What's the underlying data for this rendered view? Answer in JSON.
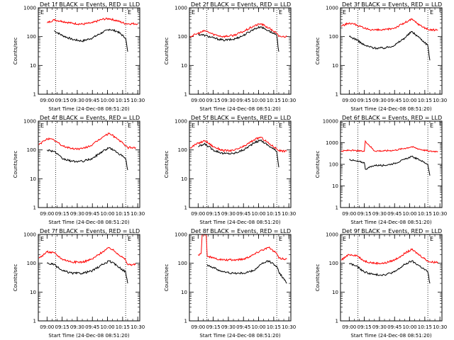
{
  "chart_data": [
    {
      "type": "line",
      "title": "Det 1f BLACK = Events, RED = LLD",
      "xlabel": "Start Time (24-Dec-08 08:51:20)",
      "ylabel": "Counts/sec",
      "xticks": [
        "09:00",
        "09:15",
        "09:30",
        "09:45",
        "10:00",
        "10:15",
        "10:30"
      ],
      "yticks": [
        "1",
        "10",
        "100",
        "1000"
      ],
      "ylim": [
        1,
        1000
      ],
      "yscale": "log",
      "markers": [
        {
          "label": "E",
          "x": "08:51:20"
        },
        {
          "label": "E",
          "x": "10:20:00"
        }
      ],
      "vlines": [
        "09:08:30",
        "10:18:00"
      ],
      "x": [
        "09:00",
        "09:07",
        "09:15",
        "09:25",
        "09:35",
        "09:45",
        "09:55",
        "10:02",
        "10:10",
        "10:18",
        "10:20",
        "10:30"
      ],
      "series": [
        {
          "name": "BLACK = Events",
          "color": "#000000",
          "values": [
            null,
            160,
            110,
            80,
            70,
            90,
            140,
            180,
            150,
            90,
            30,
            null
          ]
        },
        {
          "name": "RED = LLD",
          "color": "#ff0000",
          "values": [
            300,
            380,
            340,
            290,
            270,
            300,
            400,
            420,
            350,
            280,
            280,
            280
          ]
        }
      ]
    },
    {
      "type": "line",
      "title": "Det 2f BLACK = Events, RED = LLD",
      "xlabel": "Start Time (24-Dec-08 08:51:20)",
      "ylabel": "Counts/sec",
      "xticks": [
        "09:00",
        "09:15",
        "09:30",
        "09:45",
        "10:00",
        "10:15",
        "10:30"
      ],
      "yticks": [
        "1",
        "10",
        "100",
        "1000"
      ],
      "ylim": [
        1,
        1000
      ],
      "yscale": "log",
      "markers": [
        {
          "label": "E",
          "x": "08:51:20"
        },
        {
          "label": "E",
          "x": "10:20:00"
        }
      ],
      "vlines": [
        "09:08:30",
        "10:18:00"
      ],
      "x": [
        "08:52",
        "09:00",
        "09:07",
        "09:15",
        "09:25",
        "09:35",
        "09:45",
        "09:55",
        "10:02",
        "10:10",
        "10:18",
        "10:20",
        "10:28"
      ],
      "series": [
        {
          "name": "BLACK = Events",
          "color": "#000000",
          "values": [
            null,
            120,
            110,
            90,
            75,
            80,
            110,
            180,
            220,
            160,
            110,
            30,
            null
          ]
        },
        {
          "name": "RED = LLD",
          "color": "#ff0000",
          "values": [
            100,
            130,
            160,
            120,
            100,
            110,
            150,
            230,
            280,
            200,
            130,
            100,
            100
          ]
        }
      ]
    },
    {
      "type": "line",
      "title": "Det 3f BLACK = Events, RED = LLD",
      "xlabel": "Start Time (24-Dec-08 08:51:20)",
      "ylabel": "Counts/sec",
      "xticks": [
        "09:00",
        "09:15",
        "09:30",
        "09:45",
        "10:00",
        "10:15",
        "10:30"
      ],
      "yticks": [
        "1",
        "10",
        "100",
        "1000"
      ],
      "ylim": [
        1,
        1000
      ],
      "yscale": "log",
      "markers": [
        {
          "label": "E",
          "x": "08:51:20"
        },
        {
          "label": "E",
          "x": "10:20:00"
        }
      ],
      "vlines": [
        "09:08:30",
        "10:18:00"
      ],
      "x": [
        "08:52",
        "09:00",
        "09:07",
        "09:15",
        "09:25",
        "09:35",
        "09:45",
        "09:55",
        "10:02",
        "10:10",
        "10:18",
        "10:20",
        "10:28"
      ],
      "series": [
        {
          "name": "BLACK = Events",
          "color": "#000000",
          "values": [
            null,
            100,
            80,
            50,
            40,
            40,
            50,
            90,
            150,
            90,
            50,
            15,
            null
          ]
        },
        {
          "name": "RED = LLD",
          "color": "#ff0000",
          "values": [
            230,
            300,
            260,
            190,
            170,
            170,
            200,
            300,
            400,
            250,
            180,
            170,
            170
          ]
        }
      ]
    },
    {
      "type": "line",
      "title": "Det 4f BLACK = Events, RED = LLD",
      "xlabel": "Start Time (24-Dec-08 08:51:20)",
      "ylabel": "Counts/sec",
      "xticks": [
        "09:00",
        "09:15",
        "09:30",
        "09:45",
        "10:00",
        "10:15",
        "10:30"
      ],
      "yticks": [
        "1",
        "10",
        "100",
        "1000"
      ],
      "ylim": [
        1,
        1000
      ],
      "yscale": "log",
      "markers": [
        {
          "label": "E",
          "x": "08:51:20"
        },
        {
          "label": "E",
          "x": "10:20:00"
        }
      ],
      "vlines": [
        "09:08:30",
        "10:18:00"
      ],
      "x": [
        "08:52",
        "09:00",
        "09:07",
        "09:15",
        "09:25",
        "09:35",
        "09:45",
        "09:55",
        "10:02",
        "10:10",
        "10:18",
        "10:20",
        "10:28"
      ],
      "series": [
        {
          "name": "BLACK = Events",
          "color": "#000000",
          "values": [
            null,
            100,
            90,
            50,
            40,
            40,
            50,
            90,
            120,
            80,
            50,
            20,
            null
          ]
        },
        {
          "name": "RED = LLD",
          "color": "#ff0000",
          "values": [
            150,
            250,
            220,
            140,
            110,
            110,
            150,
            280,
            380,
            240,
            140,
            120,
            120
          ]
        }
      ]
    },
    {
      "type": "line",
      "title": "Det 5f BLACK = Events, RED = LLD",
      "xlabel": "Start Time (24-Dec-08 08:51:20)",
      "ylabel": "Counts/sec",
      "xticks": [
        "09:00",
        "09:15",
        "09:30",
        "09:45",
        "10:00",
        "10:15",
        "10:30"
      ],
      "yticks": [
        "1",
        "10",
        "100",
        "1000"
      ],
      "ylim": [
        1,
        1000
      ],
      "yscale": "log",
      "markers": [
        {
          "label": "E",
          "x": "08:51:20"
        },
        {
          "label": "E",
          "x": "10:20:00"
        }
      ],
      "vlines": [
        "09:08:30",
        "10:18:00"
      ],
      "x": [
        "08:52",
        "09:00",
        "09:07",
        "09:15",
        "09:25",
        "09:35",
        "09:45",
        "09:55",
        "10:02",
        "10:10",
        "10:18",
        "10:20",
        "10:28"
      ],
      "series": [
        {
          "name": "BLACK = Events",
          "color": "#000000",
          "values": [
            null,
            130,
            160,
            100,
            75,
            75,
            100,
            170,
            220,
            140,
            90,
            25,
            null
          ]
        },
        {
          "name": "RED = LLD",
          "color": "#ff0000",
          "values": [
            120,
            170,
            210,
            130,
            95,
            95,
            130,
            220,
            280,
            170,
            110,
            95,
            90
          ]
        }
      ]
    },
    {
      "type": "line",
      "title": "Det 6f BLACK = Events, RED = LLD",
      "xlabel": "Start Time (24-Dec-08 08:51:20)",
      "ylabel": "Counts/sec",
      "xticks": [
        "09:00",
        "09:15",
        "09:30",
        "09:45",
        "10:00",
        "10:15",
        "10:30"
      ],
      "yticks": [
        "1",
        "10",
        "100",
        "1000",
        "10000"
      ],
      "ylim": [
        1,
        10000
      ],
      "yscale": "log",
      "markers": [
        {
          "label": "E",
          "x": "08:51:20"
        },
        {
          "label": "E",
          "x": "10:20:00"
        }
      ],
      "vlines": [
        "09:08:30",
        "10:18:00"
      ],
      "x": [
        "08:52",
        "09:00",
        "09:07",
        "09:15",
        "09:16",
        "09:25",
        "09:35",
        "09:45",
        "09:55",
        "10:02",
        "10:10",
        "10:18",
        "10:20",
        "10:28"
      ],
      "series": [
        {
          "name": "BLACK = Events",
          "color": "#000000",
          "values": [
            null,
            170,
            140,
            120,
            60,
            90,
            90,
            110,
            170,
            230,
            160,
            100,
            30,
            null
          ]
        },
        {
          "name": "RED = LLD",
          "color": "#ff0000",
          "values": [
            400,
            450,
            420,
            400,
            1200,
            420,
            420,
            450,
            550,
            650,
            500,
            420,
            400,
            400
          ]
        }
      ]
    },
    {
      "type": "line",
      "title": "Det 7f BLACK = Events, RED = LLD",
      "xlabel": "Start Time (24-Dec-08 08:51:20)",
      "ylabel": "Counts/sec",
      "xticks": [
        "09:00",
        "09:15",
        "09:30",
        "09:45",
        "10:00",
        "10:15",
        "10:30"
      ],
      "yticks": [
        "1",
        "10",
        "100",
        "1000"
      ],
      "ylim": [
        1,
        1000
      ],
      "yscale": "log",
      "markers": [
        {
          "label": "E",
          "x": "08:51:20"
        },
        {
          "label": "E",
          "x": "10:20:00"
        }
      ],
      "vlines": [
        "09:08:30",
        "10:18:00"
      ],
      "x": [
        "08:52",
        "09:00",
        "09:07",
        "09:15",
        "09:25",
        "09:35",
        "09:45",
        "09:55",
        "10:02",
        "10:10",
        "10:18",
        "10:20",
        "10:28"
      ],
      "series": [
        {
          "name": "BLACK = Events",
          "color": "#000000",
          "values": [
            null,
            100,
            90,
            55,
            45,
            45,
            55,
            90,
            120,
            80,
            50,
            20,
            null
          ]
        },
        {
          "name": "RED = LLD",
          "color": "#ff0000",
          "values": [
            150,
            250,
            230,
            140,
            110,
            110,
            140,
            250,
            350,
            220,
            130,
            90,
            90
          ]
        }
      ]
    },
    {
      "type": "line",
      "title": "Det 8f BLACK = Events, RED = LLD",
      "xlabel": "Start Time (24-Dec-08 08:51:20)",
      "ylabel": "Counts/sec",
      "xticks": [
        "09:00",
        "09:15",
        "09:30",
        "09:45",
        "10:00",
        "10:15",
        "10:30"
      ],
      "yticks": [
        "1",
        "10",
        "100",
        "1000"
      ],
      "ylim": [
        1,
        1000
      ],
      "yscale": "log",
      "markers": [
        {
          "label": "E",
          "x": "08:51:20"
        },
        {
          "label": "E",
          "x": "10:20:00"
        }
      ],
      "vlines": [
        "09:08:30",
        "10:18:00"
      ],
      "x": [
        "08:52",
        "09:00",
        "09:03",
        "09:04",
        "09:08",
        "09:09",
        "09:15",
        "09:25",
        "09:35",
        "09:45",
        "09:55",
        "10:02",
        "10:10",
        "10:18",
        "10:20",
        "10:28"
      ],
      "series": [
        {
          "name": "BLACK = Events",
          "color": "#000000",
          "values": [
            null,
            null,
            null,
            null,
            null,
            90,
            70,
            50,
            45,
            45,
            55,
            90,
            120,
            80,
            50,
            20
          ]
        },
        {
          "name": "RED = LLD",
          "color": "#ff0000",
          "values": [
            null,
            200,
            220,
            1000,
            1000,
            180,
            150,
            130,
            130,
            140,
            200,
            280,
            350,
            220,
            150,
            140
          ]
        }
      ]
    },
    {
      "type": "line",
      "title": "Det 9f BLACK = Events, RED = LLD",
      "xlabel": "Start Time (24-Dec-08 08:51:20)",
      "ylabel": "Counts/sec",
      "xticks": [
        "09:00",
        "09:15",
        "09:30",
        "09:45",
        "10:00",
        "10:15",
        "10:30"
      ],
      "yticks": [
        "1",
        "10",
        "100",
        "1000"
      ],
      "ylim": [
        1,
        1000
      ],
      "yscale": "log",
      "markers": [
        {
          "label": "E",
          "x": "08:51:20"
        },
        {
          "label": "E",
          "x": "10:20:00"
        }
      ],
      "vlines": [
        "09:08:30",
        "10:18:00"
      ],
      "x": [
        "08:52",
        "09:00",
        "09:07",
        "09:15",
        "09:25",
        "09:35",
        "09:45",
        "09:55",
        "10:02",
        "10:10",
        "10:18",
        "10:20",
        "10:28"
      ],
      "series": [
        {
          "name": "BLACK = Events",
          "color": "#000000",
          "values": [
            null,
            100,
            80,
            50,
            40,
            40,
            50,
            90,
            120,
            80,
            50,
            20,
            null
          ]
        },
        {
          "name": "RED = LLD",
          "color": "#ff0000",
          "values": [
            130,
            200,
            190,
            120,
            100,
            100,
            130,
            220,
            300,
            190,
            120,
            110,
            110
          ]
        }
      ]
    }
  ]
}
